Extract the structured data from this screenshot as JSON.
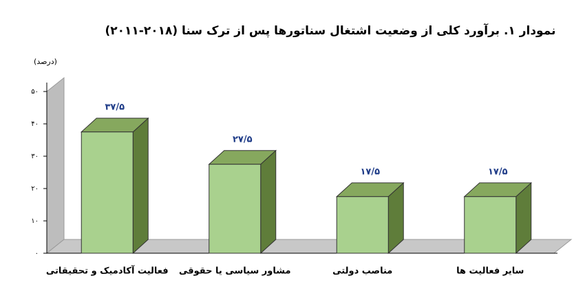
{
  "chart_data": {
    "type": "bar3d",
    "title": "نمودار ۱. برآورد کلی از وضعیت اشتغال سناتورها پس از ترک سنا (۲۰۱۸-۲۰۱۱)",
    "y_label": "(درصد)",
    "categories": [
      "فعالیت آکادمیک و تحقیقاتی",
      "مشاور سیاسی یا حقوقی",
      "مناصب دولتی",
      "سایر فعالیت ها"
    ],
    "values": [
      37.5,
      27.5,
      17.5,
      17.5
    ],
    "value_labels": [
      "۳۷/۵",
      "۲۷/۵",
      "۱۷/۵",
      "۱۷/۵"
    ],
    "color": "#a9d18e",
    "ylim": [
      0,
      50
    ],
    "yticks": [
      {
        "value": 0,
        "label": "٠"
      },
      {
        "value": 10,
        "label": "۱٠"
      },
      {
        "value": 20,
        "label": "۲٠"
      },
      {
        "value": 30,
        "label": "۳٠"
      },
      {
        "value": 40,
        "label": "۴٠"
      },
      {
        "value": 50,
        "label": "۵٠"
      }
    ]
  }
}
